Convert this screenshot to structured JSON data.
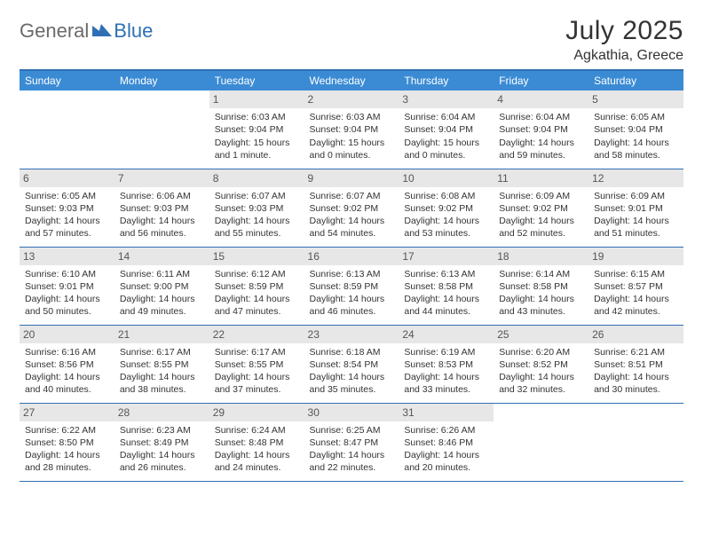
{
  "logo": {
    "text1": "General",
    "text2": "Blue"
  },
  "title": "July 2025",
  "location": "Agkathia, Greece",
  "colors": {
    "header_bar": "#3b8bd4",
    "border": "#2f6fb3",
    "daynum_bg": "#e7e7e7",
    "text": "#333333",
    "logo_gray": "#6a6a6a",
    "logo_blue": "#2f6fb3"
  },
  "day_names": [
    "Sunday",
    "Monday",
    "Tuesday",
    "Wednesday",
    "Thursday",
    "Friday",
    "Saturday"
  ],
  "weeks": [
    [
      {
        "empty": true
      },
      {
        "empty": true
      },
      {
        "num": "1",
        "sunrise": "Sunrise: 6:03 AM",
        "sunset": "Sunset: 9:04 PM",
        "daylight1": "Daylight: 15 hours",
        "daylight2": "and 1 minute."
      },
      {
        "num": "2",
        "sunrise": "Sunrise: 6:03 AM",
        "sunset": "Sunset: 9:04 PM",
        "daylight1": "Daylight: 15 hours",
        "daylight2": "and 0 minutes."
      },
      {
        "num": "3",
        "sunrise": "Sunrise: 6:04 AM",
        "sunset": "Sunset: 9:04 PM",
        "daylight1": "Daylight: 15 hours",
        "daylight2": "and 0 minutes."
      },
      {
        "num": "4",
        "sunrise": "Sunrise: 6:04 AM",
        "sunset": "Sunset: 9:04 PM",
        "daylight1": "Daylight: 14 hours",
        "daylight2": "and 59 minutes."
      },
      {
        "num": "5",
        "sunrise": "Sunrise: 6:05 AM",
        "sunset": "Sunset: 9:04 PM",
        "daylight1": "Daylight: 14 hours",
        "daylight2": "and 58 minutes."
      }
    ],
    [
      {
        "num": "6",
        "sunrise": "Sunrise: 6:05 AM",
        "sunset": "Sunset: 9:03 PM",
        "daylight1": "Daylight: 14 hours",
        "daylight2": "and 57 minutes."
      },
      {
        "num": "7",
        "sunrise": "Sunrise: 6:06 AM",
        "sunset": "Sunset: 9:03 PM",
        "daylight1": "Daylight: 14 hours",
        "daylight2": "and 56 minutes."
      },
      {
        "num": "8",
        "sunrise": "Sunrise: 6:07 AM",
        "sunset": "Sunset: 9:03 PM",
        "daylight1": "Daylight: 14 hours",
        "daylight2": "and 55 minutes."
      },
      {
        "num": "9",
        "sunrise": "Sunrise: 6:07 AM",
        "sunset": "Sunset: 9:02 PM",
        "daylight1": "Daylight: 14 hours",
        "daylight2": "and 54 minutes."
      },
      {
        "num": "10",
        "sunrise": "Sunrise: 6:08 AM",
        "sunset": "Sunset: 9:02 PM",
        "daylight1": "Daylight: 14 hours",
        "daylight2": "and 53 minutes."
      },
      {
        "num": "11",
        "sunrise": "Sunrise: 6:09 AM",
        "sunset": "Sunset: 9:02 PM",
        "daylight1": "Daylight: 14 hours",
        "daylight2": "and 52 minutes."
      },
      {
        "num": "12",
        "sunrise": "Sunrise: 6:09 AM",
        "sunset": "Sunset: 9:01 PM",
        "daylight1": "Daylight: 14 hours",
        "daylight2": "and 51 minutes."
      }
    ],
    [
      {
        "num": "13",
        "sunrise": "Sunrise: 6:10 AM",
        "sunset": "Sunset: 9:01 PM",
        "daylight1": "Daylight: 14 hours",
        "daylight2": "and 50 minutes."
      },
      {
        "num": "14",
        "sunrise": "Sunrise: 6:11 AM",
        "sunset": "Sunset: 9:00 PM",
        "daylight1": "Daylight: 14 hours",
        "daylight2": "and 49 minutes."
      },
      {
        "num": "15",
        "sunrise": "Sunrise: 6:12 AM",
        "sunset": "Sunset: 8:59 PM",
        "daylight1": "Daylight: 14 hours",
        "daylight2": "and 47 minutes."
      },
      {
        "num": "16",
        "sunrise": "Sunrise: 6:13 AM",
        "sunset": "Sunset: 8:59 PM",
        "daylight1": "Daylight: 14 hours",
        "daylight2": "and 46 minutes."
      },
      {
        "num": "17",
        "sunrise": "Sunrise: 6:13 AM",
        "sunset": "Sunset: 8:58 PM",
        "daylight1": "Daylight: 14 hours",
        "daylight2": "and 44 minutes."
      },
      {
        "num": "18",
        "sunrise": "Sunrise: 6:14 AM",
        "sunset": "Sunset: 8:58 PM",
        "daylight1": "Daylight: 14 hours",
        "daylight2": "and 43 minutes."
      },
      {
        "num": "19",
        "sunrise": "Sunrise: 6:15 AM",
        "sunset": "Sunset: 8:57 PM",
        "daylight1": "Daylight: 14 hours",
        "daylight2": "and 42 minutes."
      }
    ],
    [
      {
        "num": "20",
        "sunrise": "Sunrise: 6:16 AM",
        "sunset": "Sunset: 8:56 PM",
        "daylight1": "Daylight: 14 hours",
        "daylight2": "and 40 minutes."
      },
      {
        "num": "21",
        "sunrise": "Sunrise: 6:17 AM",
        "sunset": "Sunset: 8:55 PM",
        "daylight1": "Daylight: 14 hours",
        "daylight2": "and 38 minutes."
      },
      {
        "num": "22",
        "sunrise": "Sunrise: 6:17 AM",
        "sunset": "Sunset: 8:55 PM",
        "daylight1": "Daylight: 14 hours",
        "daylight2": "and 37 minutes."
      },
      {
        "num": "23",
        "sunrise": "Sunrise: 6:18 AM",
        "sunset": "Sunset: 8:54 PM",
        "daylight1": "Daylight: 14 hours",
        "daylight2": "and 35 minutes."
      },
      {
        "num": "24",
        "sunrise": "Sunrise: 6:19 AM",
        "sunset": "Sunset: 8:53 PM",
        "daylight1": "Daylight: 14 hours",
        "daylight2": "and 33 minutes."
      },
      {
        "num": "25",
        "sunrise": "Sunrise: 6:20 AM",
        "sunset": "Sunset: 8:52 PM",
        "daylight1": "Daylight: 14 hours",
        "daylight2": "and 32 minutes."
      },
      {
        "num": "26",
        "sunrise": "Sunrise: 6:21 AM",
        "sunset": "Sunset: 8:51 PM",
        "daylight1": "Daylight: 14 hours",
        "daylight2": "and 30 minutes."
      }
    ],
    [
      {
        "num": "27",
        "sunrise": "Sunrise: 6:22 AM",
        "sunset": "Sunset: 8:50 PM",
        "daylight1": "Daylight: 14 hours",
        "daylight2": "and 28 minutes."
      },
      {
        "num": "28",
        "sunrise": "Sunrise: 6:23 AM",
        "sunset": "Sunset: 8:49 PM",
        "daylight1": "Daylight: 14 hours",
        "daylight2": "and 26 minutes."
      },
      {
        "num": "29",
        "sunrise": "Sunrise: 6:24 AM",
        "sunset": "Sunset: 8:48 PM",
        "daylight1": "Daylight: 14 hours",
        "daylight2": "and 24 minutes."
      },
      {
        "num": "30",
        "sunrise": "Sunrise: 6:25 AM",
        "sunset": "Sunset: 8:47 PM",
        "daylight1": "Daylight: 14 hours",
        "daylight2": "and 22 minutes."
      },
      {
        "num": "31",
        "sunrise": "Sunrise: 6:26 AM",
        "sunset": "Sunset: 8:46 PM",
        "daylight1": "Daylight: 14 hours",
        "daylight2": "and 20 minutes."
      },
      {
        "empty": true
      },
      {
        "empty": true
      }
    ]
  ]
}
